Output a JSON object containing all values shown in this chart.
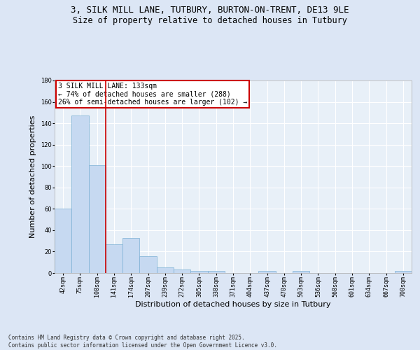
{
  "title_line1": "3, SILK MILL LANE, TUTBURY, BURTON-ON-TRENT, DE13 9LE",
  "title_line2": "Size of property relative to detached houses in Tutbury",
  "xlabel": "Distribution of detached houses by size in Tutbury",
  "ylabel": "Number of detached properties",
  "categories": [
    "42sqm",
    "75sqm",
    "108sqm",
    "141sqm",
    "174sqm",
    "207sqm",
    "239sqm",
    "272sqm",
    "305sqm",
    "338sqm",
    "371sqm",
    "404sqm",
    "437sqm",
    "470sqm",
    "503sqm",
    "536sqm",
    "568sqm",
    "601sqm",
    "634sqm",
    "667sqm",
    "700sqm"
  ],
  "values": [
    60,
    147,
    101,
    27,
    33,
    16,
    5,
    3,
    2,
    2,
    0,
    0,
    2,
    0,
    2,
    0,
    0,
    0,
    0,
    0,
    2
  ],
  "bar_color": "#c6d9f1",
  "bar_edge_color": "#7bafd4",
  "vline_x": 2.5,
  "vline_color": "#cc0000",
  "annotation_text": "3 SILK MILL LANE: 133sqm\n← 74% of detached houses are smaller (288)\n26% of semi-detached houses are larger (102) →",
  "annotation_box_color": "#cc0000",
  "ylim": [
    0,
    180
  ],
  "yticks": [
    0,
    20,
    40,
    60,
    80,
    100,
    120,
    140,
    160,
    180
  ],
  "footer": "Contains HM Land Registry data © Crown copyright and database right 2025.\nContains public sector information licensed under the Open Government Licence v3.0.",
  "bg_color": "#dce6f5",
  "plot_bg_color": "#e8f0f8",
  "title_fontsize": 9,
  "subtitle_fontsize": 8.5,
  "tick_fontsize": 6,
  "label_fontsize": 8,
  "annotation_fontsize": 7,
  "footer_fontsize": 5.5
}
